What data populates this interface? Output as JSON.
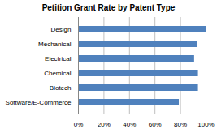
{
  "chart_data": {
    "type": "bar",
    "title": "Petition Grant Rate by Patent Type",
    "orientation": "horizontal",
    "categories": [
      "Design",
      "Mechanical",
      "Electrical",
      "Chemical",
      "Biotech",
      "Software/E-Commerce"
    ],
    "values": [
      100,
      93,
      91,
      94,
      94,
      79
    ],
    "color": "#4f81bd",
    "xlim": [
      0,
      100
    ],
    "xticks": [
      {
        "value": 0,
        "label": "0%"
      },
      {
        "value": 20,
        "label": "20%"
      },
      {
        "value": 40,
        "label": "40%"
      },
      {
        "value": 60,
        "label": "60%"
      },
      {
        "value": 80,
        "label": "80%"
      },
      {
        "value": 100,
        "label": "100%"
      }
    ],
    "grid": true
  }
}
